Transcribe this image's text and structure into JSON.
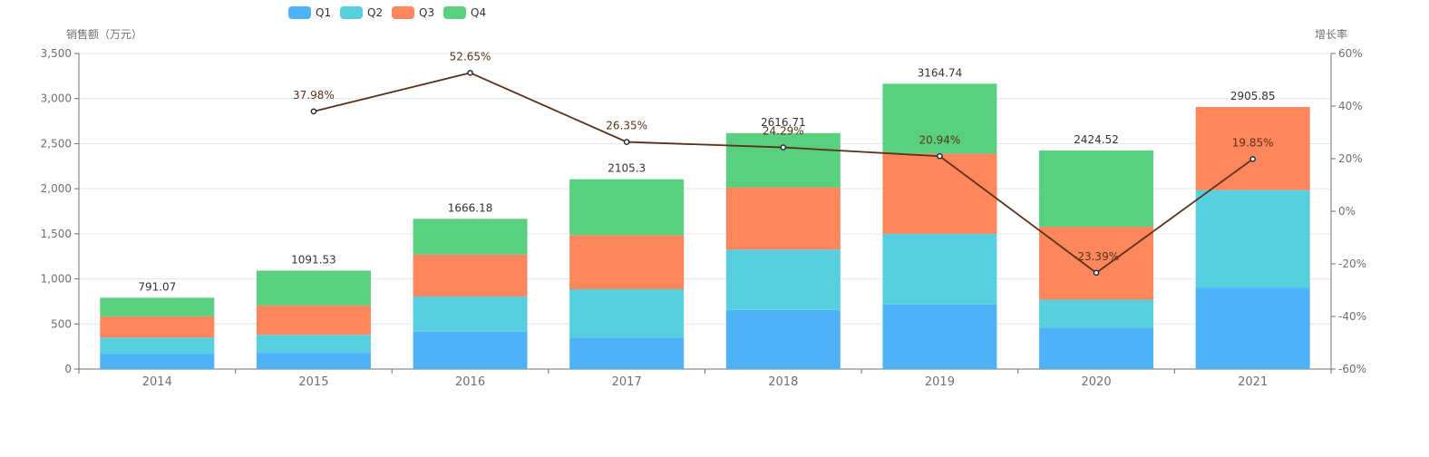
{
  "chart_data": {
    "type": "bar",
    "stacked": true,
    "title": "",
    "categories": [
      "2014",
      "2015",
      "2016",
      "2017",
      "2018",
      "2019",
      "2020",
      "2021"
    ],
    "series": [
      {
        "name": "Q1",
        "color": "#4fb2f6",
        "values": [
          170,
          180,
          415,
          350,
          655,
          715,
          460,
          900
        ]
      },
      {
        "name": "Q2",
        "color": "#58cfdf",
        "values": [
          180,
          200,
          390,
          535,
          670,
          785,
          310,
          1085
        ]
      },
      {
        "name": "Q3",
        "color": "#fd865c",
        "values": [
          235,
          325,
          465,
          600,
          690,
          890,
          810,
          920.85
        ]
      },
      {
        "name": "Q4",
        "color": "#58d080",
        "values": [
          206.07,
          386.53,
          396.18,
          620.3,
          601.71,
          774.74,
          844.52,
          0
        ]
      }
    ],
    "totals": [
      "791.07",
      "1091.53",
      "1666.18",
      "2105.3",
      "2616.71",
      "3164.74",
      "2424.52",
      "2905.85"
    ],
    "line": {
      "name": "增长率",
      "color": "#5b3219",
      "values": [
        null,
        37.98,
        52.65,
        26.35,
        24.29,
        20.94,
        -23.39,
        19.85
      ],
      "labels": [
        "",
        "37.98%",
        "52.65%",
        "26.35%",
        "24.29%",
        "20.94%",
        "-23.39%",
        "19.85%"
      ]
    },
    "y_left": {
      "label": "销售额（万元）",
      "min": 0,
      "max": 3500,
      "ticks": [
        "0",
        "500",
        "1,000",
        "1,500",
        "2,000",
        "2,500",
        "3,000",
        "3,500"
      ]
    },
    "y_right": {
      "label": "增长率",
      "min": -60,
      "max": 60,
      "ticks": [
        "-60%",
        "-40%",
        "-20%",
        "0%",
        "20%",
        "40%",
        "60%"
      ]
    },
    "legend_position": "top-left",
    "grid": true
  }
}
